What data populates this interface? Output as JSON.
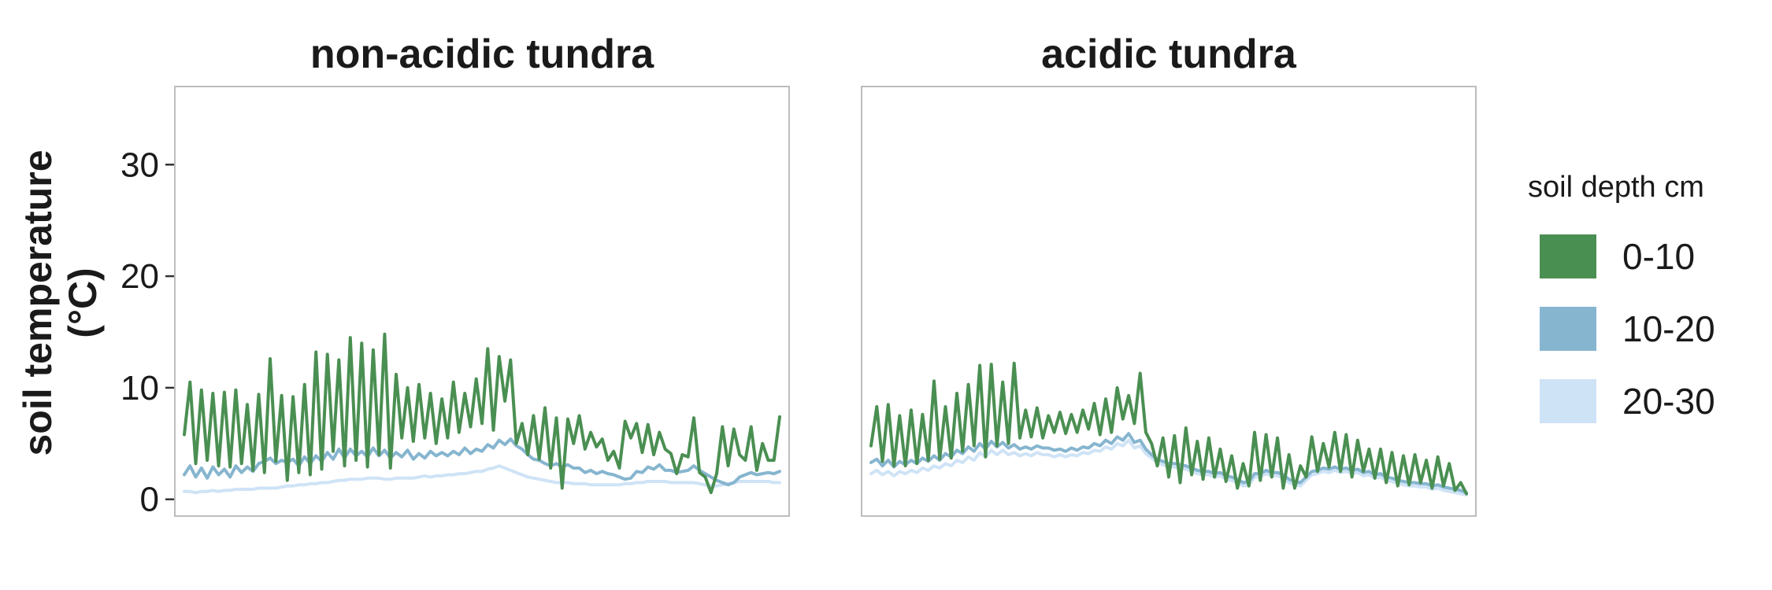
{
  "chart_data": {
    "type": "line",
    "ylabel": "soil temperature",
    "ylabel_unit": "(°C)",
    "yticks": [
      0,
      10,
      20,
      30
    ],
    "ylim": [
      -1.5,
      37
    ],
    "legend": {
      "title": "soil depth cm",
      "position": "right",
      "entries": [
        {
          "label": "0-10",
          "color": "#4a8f52"
        },
        {
          "label": "10-20",
          "color": "#86b5cf"
        },
        {
          "label": "20-30",
          "color": "#cfe3f6"
        }
      ]
    },
    "grid": false,
    "panels": [
      {
        "title": "non-acidic tundra",
        "series": [
          {
            "name": "0-10",
            "color": "#4a8f52",
            "values": [
              5.8,
              10.5,
              3.2,
              9.8,
              3.5,
              9.5,
              3.0,
              9.6,
              2.9,
              9.8,
              3.2,
              8.5,
              2.6,
              9.4,
              2.4,
              12.6,
              3.4,
              9.3,
              1.7,
              9.2,
              2.4,
              10.3,
              2.2,
              13.2,
              2.7,
              13.0,
              4.3,
              12.5,
              3.0,
              14.5,
              3.5,
              14.0,
              2.9,
              13.4,
              4.0,
              14.8,
              2.8,
              11.2,
              5.5,
              10.0,
              5.2,
              10.3,
              5.5,
              9.5,
              5.0,
              9.0,
              5.5,
              10.5,
              6.0,
              9.5,
              6.5,
              10.8,
              6.8,
              13.5,
              6.2,
              12.8,
              8.8,
              12.5,
              5.0,
              6.8,
              4.0,
              7.5,
              3.6,
              8.2,
              2.8,
              7.3,
              1.0,
              7.2,
              5.0,
              7.5,
              4.5,
              6.0,
              4.7,
              5.4,
              3.5,
              4.3,
              2.8,
              7.0,
              5.5,
              6.8,
              4.2,
              6.7,
              4.0,
              6.0,
              4.5,
              4.1,
              2.3,
              4.0,
              3.8,
              7.3,
              2.4,
              2.0,
              0.6,
              2.3,
              6.5,
              3.0,
              6.3,
              4.0,
              3.5,
              6.5,
              2.6,
              5.0,
              3.5,
              3.5,
              7.4
            ]
          },
          {
            "name": "10-20",
            "color": "#86b5cf",
            "values": [
              2.2,
              3.0,
              2.0,
              2.8,
              1.9,
              2.9,
              2.2,
              2.7,
              2.0,
              3.0,
              2.4,
              2.9,
              2.5,
              3.2,
              3.4,
              3.7,
              3.2,
              3.5,
              3.3,
              3.6,
              3.0,
              3.8,
              3.2,
              3.9,
              3.4,
              4.2,
              3.6,
              4.5,
              3.7,
              4.5,
              3.9,
              4.3,
              3.8,
              4.6,
              3.9,
              4.4,
              3.7,
              4.2,
              3.8,
              4.4,
              3.6,
              4.1,
              3.7,
              4.3,
              3.9,
              4.2,
              3.9,
              4.3,
              4.0,
              4.6,
              4.1,
              4.5,
              4.3,
              4.9,
              4.6,
              5.3,
              4.9,
              5.4,
              4.8,
              4.5,
              4.0,
              3.6,
              3.5,
              3.2,
              3.0,
              3.2,
              2.9,
              3.1,
              2.8,
              2.8,
              2.4,
              2.6,
              2.3,
              2.5,
              2.3,
              2.2,
              2.0,
              1.8,
              1.9,
              2.5,
              2.4,
              2.9,
              2.7,
              3.1,
              2.6,
              2.6,
              2.4,
              2.5,
              2.6,
              3.0,
              2.6,
              2.3,
              2.0,
              1.7,
              1.5,
              1.3,
              1.5,
              2.0,
              2.2,
              2.4,
              2.2,
              2.3,
              2.4,
              2.3,
              2.5
            ]
          },
          {
            "name": "20-30",
            "color": "#cfe3f6",
            "values": [
              0.7,
              0.7,
              0.6,
              0.7,
              0.7,
              0.8,
              0.7,
              0.8,
              0.8,
              0.9,
              0.9,
              0.9,
              0.9,
              1.0,
              1.0,
              1.0,
              1.0,
              1.1,
              1.2,
              1.2,
              1.3,
              1.3,
              1.4,
              1.4,
              1.5,
              1.5,
              1.6,
              1.7,
              1.7,
              1.8,
              1.8,
              1.8,
              1.9,
              1.9,
              1.9,
              1.8,
              1.8,
              1.9,
              1.9,
              1.9,
              1.9,
              2.0,
              2.1,
              2.0,
              2.1,
              2.1,
              2.2,
              2.2,
              2.3,
              2.3,
              2.4,
              2.5,
              2.5,
              2.7,
              2.8,
              3.0,
              2.8,
              2.6,
              2.4,
              2.2,
              2.0,
              1.9,
              1.8,
              1.7,
              1.6,
              1.5,
              1.5,
              1.5,
              1.4,
              1.4,
              1.4,
              1.3,
              1.3,
              1.3,
              1.3,
              1.3,
              1.3,
              1.4,
              1.4,
              1.5,
              1.5,
              1.6,
              1.6,
              1.6,
              1.6,
              1.5,
              1.5,
              1.5,
              1.5,
              1.5,
              1.4,
              1.3,
              1.2,
              1.2,
              1.3,
              1.4,
              1.5,
              1.6,
              1.6,
              1.6,
              1.6,
              1.6,
              1.6,
              1.5,
              1.5
            ]
          }
        ]
      },
      {
        "title": "acidic tundra",
        "series": [
          {
            "name": "0-10",
            "color": "#4a8f52",
            "values": [
              4.8,
              8.3,
              3.4,
              8.5,
              3.0,
              7.5,
              3.0,
              8.0,
              3.2,
              7.6,
              3.5,
              10.6,
              3.6,
              8.3,
              3.7,
              9.5,
              4.3,
              10.3,
              4.8,
              12.0,
              3.8,
              12.1,
              4.8,
              10.5,
              5.0,
              12.2,
              5.5,
              8.0,
              5.6,
              8.2,
              5.5,
              7.5,
              6.0,
              7.8,
              5.9,
              7.6,
              6.0,
              8.0,
              6.3,
              8.6,
              5.8,
              9.0,
              6.0,
              10.0,
              7.2,
              9.3,
              6.8,
              11.3,
              6.0,
              5.0,
              3.0,
              5.5,
              2.0,
              5.7,
              1.5,
              6.4,
              2.2,
              5.2,
              1.8,
              5.5,
              2.0,
              4.5,
              1.6,
              3.9,
              1.0,
              3.2,
              1.2,
              6.0,
              1.7,
              5.8,
              2.0,
              5.5,
              1.0,
              4.0,
              1.0,
              3.0,
              2.0,
              5.6,
              2.5,
              5.0,
              2.9,
              6.0,
              2.5,
              5.8,
              2.0,
              5.3,
              2.5,
              4.5,
              1.9,
              4.5,
              1.5,
              4.2,
              1.2,
              3.9,
              1.3,
              4.0,
              1.5,
              3.5,
              1.0,
              3.8,
              1.2,
              3.2,
              0.8,
              1.5,
              0.5
            ]
          },
          {
            "name": "10-20",
            "color": "#86b5cf",
            "values": [
              3.3,
              3.6,
              3.0,
              3.5,
              2.9,
              3.4,
              3.1,
              3.5,
              3.2,
              3.7,
              3.4,
              3.9,
              3.5,
              4.1,
              3.8,
              4.4,
              4.1,
              4.7,
              4.3,
              5.0,
              4.5,
              5.2,
              4.7,
              5.1,
              4.6,
              4.9,
              4.5,
              4.7,
              4.5,
              4.8,
              4.6,
              4.6,
              4.4,
              4.5,
              4.3,
              4.6,
              4.4,
              4.7,
              4.6,
              5.0,
              4.8,
              5.3,
              5.0,
              5.6,
              5.3,
              5.9,
              5.1,
              5.3,
              4.5,
              4.0,
              3.6,
              3.4,
              3.2,
              3.2,
              3.1,
              3.0,
              2.8,
              2.6,
              2.5,
              2.5,
              2.3,
              2.4,
              2.1,
              2.0,
              1.8,
              1.5,
              1.6,
              2.3,
              2.3,
              2.6,
              2.4,
              2.4,
              2.2,
              1.8,
              1.6,
              1.5,
              2.0,
              2.5,
              2.6,
              2.8,
              2.7,
              2.9,
              2.7,
              2.8,
              2.6,
              2.7,
              2.4,
              2.5,
              2.2,
              2.3,
              2.0,
              1.9,
              1.7,
              1.6,
              1.5,
              1.5,
              1.4,
              1.4,
              1.2,
              1.3,
              1.1,
              1.0,
              0.9,
              0.8,
              0.6
            ]
          },
          {
            "name": "20-30",
            "color": "#cfe3f6",
            "values": [
              2.3,
              2.6,
              2.2,
              2.5,
              2.1,
              2.5,
              2.3,
              2.6,
              2.4,
              2.8,
              2.6,
              3.0,
              2.8,
              3.2,
              3.0,
              3.5,
              3.3,
              3.8,
              3.5,
              4.2,
              3.8,
              4.4,
              4.0,
              4.4,
              4.0,
              4.2,
              3.9,
              4.1,
              3.9,
              4.2,
              4.0,
              4.0,
              3.8,
              4.0,
              3.8,
              4.0,
              3.9,
              4.2,
              4.1,
              4.4,
              4.3,
              4.7,
              4.5,
              5.0,
              4.8,
              5.3,
              4.6,
              4.8,
              4.1,
              3.7,
              3.3,
              3.1,
              2.9,
              2.9,
              2.8,
              2.7,
              2.5,
              2.3,
              2.2,
              2.2,
              2.0,
              2.1,
              1.8,
              1.7,
              1.5,
              1.2,
              1.3,
              2.0,
              2.0,
              2.3,
              2.1,
              2.1,
              1.9,
              1.5,
              1.3,
              1.2,
              1.7,
              2.2,
              2.3,
              2.5,
              2.4,
              2.6,
              2.4,
              2.5,
              2.3,
              2.4,
              2.1,
              2.2,
              1.9,
              2.0,
              1.7,
              1.6,
              1.4,
              1.3,
              1.2,
              1.2,
              1.1,
              1.1,
              0.9,
              1.0,
              0.8,
              0.7,
              0.6,
              0.5,
              0.4
            ]
          }
        ]
      }
    ]
  }
}
